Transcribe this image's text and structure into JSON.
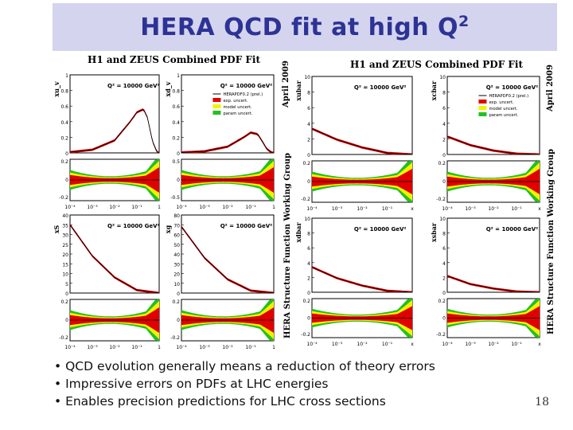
{
  "title": {
    "main": "HERA QCD fit at high Q",
    "sup": "2"
  },
  "headers": {
    "left": "H1 and ZEUS Combined PDF Fit",
    "right": "H1 and ZEUS Combined PDF Fit"
  },
  "side_labels": {
    "date_top": "April 2009",
    "group": "HERA Structure Function Working Group",
    "date_right": "April 2009",
    "group_right": "HERA Structure Function Working Group"
  },
  "bullets": [
    "• QCD evolution generally means a reduction of theory errors",
    "• Impressive errors on PDFs at LHC energies",
    "• Enables precision predictions for LHC cross sections"
  ],
  "page_number": "18",
  "colors": {
    "exp": "#e00000",
    "model": "#f2f200",
    "param": "#22c022",
    "central": "#000000",
    "title_bg": "#d4d4ef",
    "title_fg": "#2d3395"
  },
  "chart_data": [
    {
      "type": "line",
      "id": "xuv",
      "ylabel": "xu_v",
      "q2": "Q² = 10000 GeV²",
      "xlabel": "x",
      "x": [
        0.0001,
        0.001,
        0.01,
        0.05,
        0.1,
        0.2,
        0.3,
        0.5,
        0.8,
        1.0
      ],
      "y": [
        0.01,
        0.04,
        0.16,
        0.4,
        0.52,
        0.56,
        0.45,
        0.15,
        0.01,
        0
      ],
      "ylim": [
        0,
        1
      ],
      "yticks": [
        "0",
        "0.2",
        "0.4",
        "0.6",
        "0.8",
        "1"
      ],
      "ratio_ylim": [
        -0.2,
        0.2
      ],
      "ratio_yticks": [
        "0.2",
        "0",
        "-0.2"
      ],
      "xticks": [
        "10⁻⁴",
        "10⁻³",
        "10⁻²",
        "10⁻¹",
        "1"
      ]
    },
    {
      "type": "line",
      "id": "xdv",
      "ylabel": "xd_v",
      "q2": "Q² = 10000 GeV²",
      "xlabel": "x",
      "x": [
        0.0001,
        0.001,
        0.01,
        0.05,
        0.1,
        0.2,
        0.3,
        0.5,
        0.8,
        1.0
      ],
      "y": [
        0.005,
        0.02,
        0.08,
        0.2,
        0.26,
        0.24,
        0.16,
        0.05,
        0.005,
        0
      ],
      "ylim": [
        0,
        1
      ],
      "yticks": [
        "0",
        "0.2",
        "0.4",
        "0.6",
        "0.8",
        "1"
      ],
      "ratio_ylim": [
        -0.5,
        0.5
      ],
      "ratio_yticks": [
        "0.5",
        "0",
        "-0.5"
      ],
      "xticks": [
        "10⁻⁴",
        "10⁻³",
        "10⁻²",
        "10⁻¹",
        "1"
      ],
      "legend": [
        "HERAPDF0.2 (prel.)",
        "exp. uncert.",
        "model uncert.",
        "param uncert."
      ]
    },
    {
      "type": "line",
      "id": "xubar",
      "ylabel": "xubar",
      "q2": "Q² = 10000 GeV²",
      "xlabel": "x",
      "x": [
        0.0001,
        0.001,
        0.01,
        0.1,
        1.0
      ],
      "y": [
        3.3,
        1.9,
        0.9,
        0.2,
        0
      ],
      "ylim": [
        0,
        10
      ],
      "yticks": [
        "0",
        "2",
        "4",
        "6",
        "8",
        "10"
      ],
      "ratio_ylim": [
        -0.3,
        0.3
      ],
      "ratio_yticks": [
        "0.2",
        "0",
        "-0.2"
      ],
      "xticks": [
        "10⁻⁴",
        "10⁻³",
        "10⁻²",
        "10⁻¹",
        "x"
      ]
    },
    {
      "type": "line",
      "id": "xcbar",
      "ylabel": "xcbar",
      "q2": "Q² = 10000 GeV²",
      "xlabel": "x",
      "x": [
        0.0001,
        0.001,
        0.01,
        0.1,
        1.0
      ],
      "y": [
        2.3,
        1.2,
        0.5,
        0.1,
        0
      ],
      "ylim": [
        0,
        10
      ],
      "yticks": [
        "0",
        "2",
        "4",
        "6",
        "8",
        "10"
      ],
      "ratio_ylim": [
        -0.3,
        0.3
      ],
      "ratio_yticks": [
        "0.2",
        "0",
        "-0.2"
      ],
      "xticks": [
        "10⁻⁴",
        "10⁻³",
        "10⁻²",
        "10⁻¹",
        "x"
      ],
      "legend": [
        "HERAPDF0.2 (prel.)",
        "exp. uncert.",
        "model uncert.",
        "param uncert."
      ]
    },
    {
      "type": "line",
      "id": "xS",
      "ylabel": "xS",
      "q2": "Q² = 10000 GeV²",
      "xlabel": "x",
      "x": [
        0.0001,
        0.001,
        0.01,
        0.1,
        1.0
      ],
      "y": [
        35,
        19,
        8,
        1.5,
        0
      ],
      "ylim": [
        0,
        40
      ],
      "yticks": [
        "0",
        "5",
        "10",
        "15",
        "20",
        "25",
        "30",
        "35",
        "40"
      ],
      "ratio_ylim": [
        -0.2,
        0.2
      ],
      "ratio_yticks": [
        "0.2",
        "0",
        "-0.2"
      ],
      "xticks": [
        "10⁻⁴",
        "10⁻³",
        "10⁻²",
        "10⁻¹",
        "1"
      ]
    },
    {
      "type": "line",
      "id": "xg",
      "ylabel": "xg",
      "q2": "Q² = 10000 GeV²",
      "xlabel": "x",
      "x": [
        0.0001,
        0.001,
        0.01,
        0.1,
        1.0
      ],
      "y": [
        68,
        36,
        14,
        2.5,
        0
      ],
      "ylim": [
        0,
        80
      ],
      "yticks": [
        "0",
        "10",
        "20",
        "30",
        "40",
        "50",
        "60",
        "70",
        "80"
      ],
      "ratio_ylim": [
        -0.2,
        0.2
      ],
      "ratio_yticks": [
        "0.2",
        "0",
        "-0.2"
      ],
      "xticks": [
        "10⁻⁴",
        "10⁻³",
        "10⁻²",
        "10⁻¹",
        "1"
      ]
    },
    {
      "type": "line",
      "id": "xdbar",
      "ylabel": "xdbar",
      "q2": "Q² = 10000 GeV²",
      "xlabel": "x",
      "x": [
        0.0001,
        0.001,
        0.01,
        0.1,
        1.0
      ],
      "y": [
        3.4,
        1.9,
        0.9,
        0.2,
        0
      ],
      "ylim": [
        0,
        10
      ],
      "yticks": [
        "0",
        "2",
        "4",
        "6",
        "8",
        "10"
      ],
      "ratio_ylim": [
        -0.3,
        0.3
      ],
      "ratio_yticks": [
        "0.2",
        "0",
        "-0.2"
      ],
      "xticks": [
        "10⁻⁴",
        "10⁻³",
        "10⁻²",
        "10⁻¹",
        "x"
      ]
    },
    {
      "type": "line",
      "id": "xsbar",
      "ylabel": "xsbar",
      "q2": "Q² = 10000 GeV²",
      "xlabel": "x",
      "x": [
        0.0001,
        0.001,
        0.01,
        0.1,
        1.0
      ],
      "y": [
        2.2,
        1.1,
        0.5,
        0.1,
        0
      ],
      "ylim": [
        0,
        10
      ],
      "yticks": [
        "0",
        "2",
        "4",
        "6",
        "8",
        "10"
      ],
      "ratio_ylim": [
        -0.3,
        0.3
      ],
      "ratio_yticks": [
        "0.2",
        "0",
        "-0.2"
      ],
      "xticks": [
        "10⁻⁴",
        "10⁻³",
        "10⁻²",
        "10⁻¹",
        "x"
      ]
    }
  ]
}
